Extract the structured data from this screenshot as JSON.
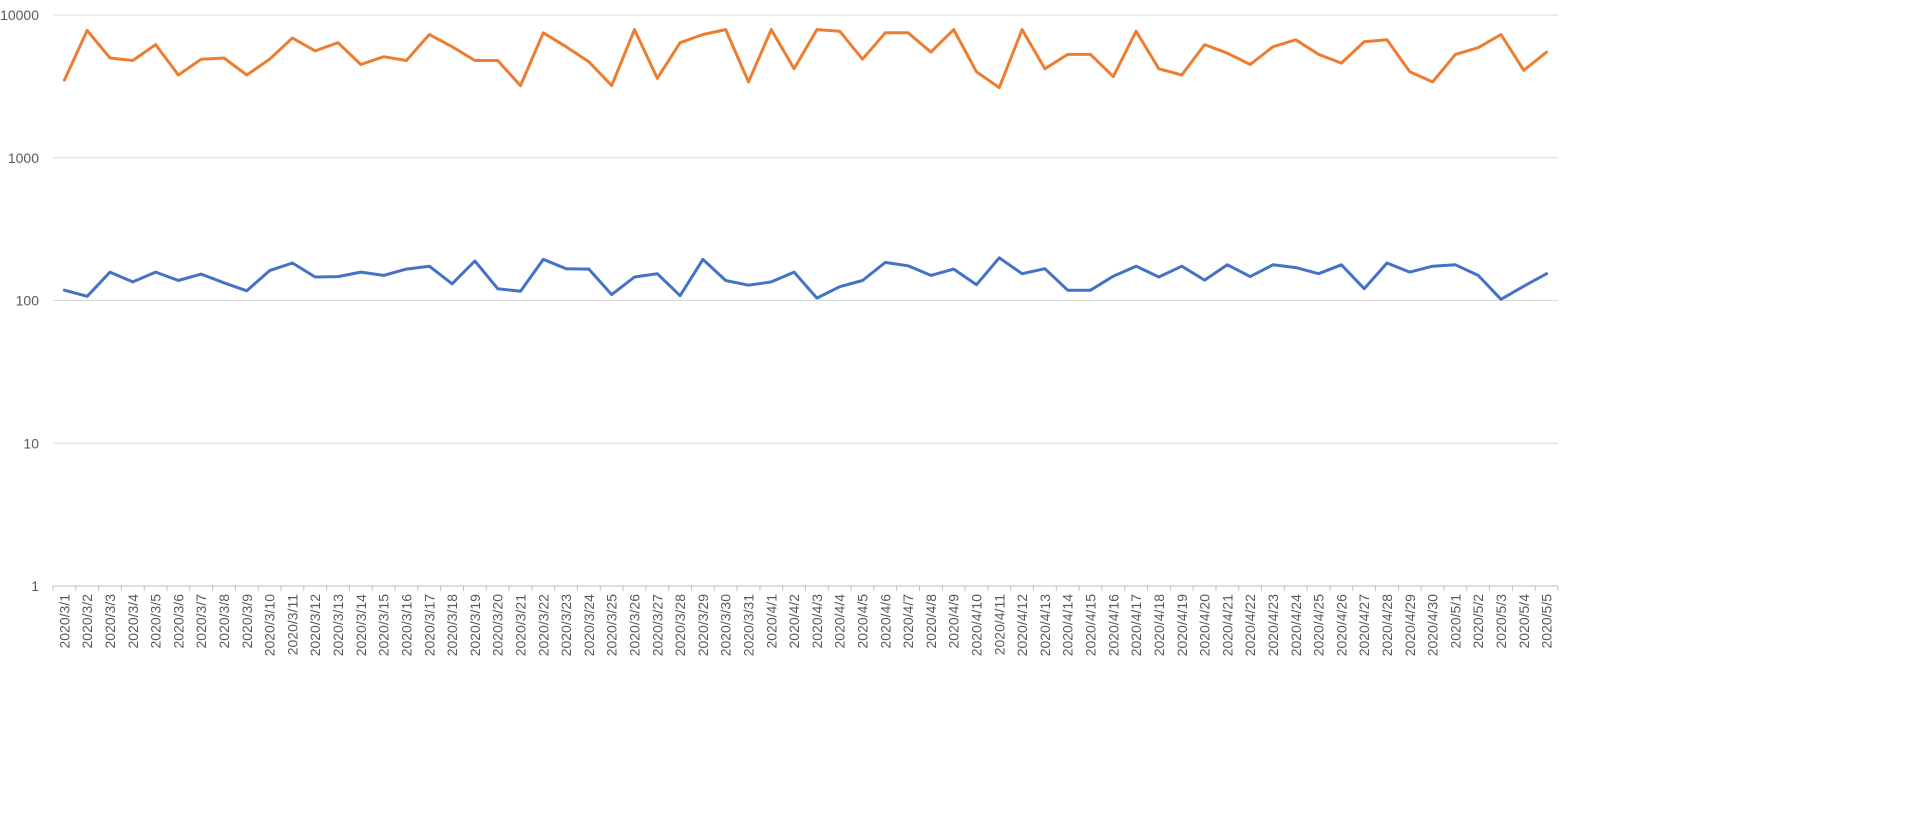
{
  "chart_data": {
    "type": "line",
    "title": "",
    "xlabel": "",
    "ylabel": "",
    "y_scale": "log",
    "ylim": [
      1,
      10000
    ],
    "y_ticks": [
      {
        "value": 1,
        "label": "1"
      },
      {
        "value": 10,
        "label": "10"
      },
      {
        "value": 100,
        "label": "100"
      },
      {
        "value": 1000,
        "label": "1000"
      },
      {
        "value": 10000,
        "label": "10000"
      }
    ],
    "grid": true,
    "legend": "none",
    "categories": [
      "2020/3/1",
      "2020/3/2",
      "2020/3/3",
      "2020/3/4",
      "2020/3/5",
      "2020/3/6",
      "2020/3/7",
      "2020/3/8",
      "2020/3/9",
      "2020/3/10",
      "2020/3/11",
      "2020/3/12",
      "2020/3/13",
      "2020/3/14",
      "2020/3/15",
      "2020/3/16",
      "2020/3/17",
      "2020/3/18",
      "2020/3/19",
      "2020/3/20",
      "2020/3/21",
      "2020/3/22",
      "2020/3/23",
      "2020/3/24",
      "2020/3/25",
      "2020/3/26",
      "2020/3/27",
      "2020/3/28",
      "2020/3/29",
      "2020/3/30",
      "2020/3/31",
      "2020/4/1",
      "2020/4/2",
      "2020/4/3",
      "2020/4/4",
      "2020/4/5",
      "2020/4/6",
      "2020/4/7",
      "2020/4/8",
      "2020/4/9",
      "2020/4/10",
      "2020/4/11",
      "2020/4/12",
      "2020/4/13",
      "2020/4/14",
      "2020/4/15",
      "2020/4/16",
      "2020/4/17",
      "2020/4/18",
      "2020/4/19",
      "2020/4/20",
      "2020/4/21",
      "2020/4/22",
      "2020/4/23",
      "2020/4/24",
      "2020/4/25",
      "2020/4/26",
      "2020/4/27",
      "2020/4/28",
      "2020/4/29",
      "2020/4/30",
      "2020/5/1",
      "2020/5/2",
      "2020/5/3",
      "2020/5/4",
      "2020/5/5"
    ],
    "series": [
      {
        "color": "#ED7D31",
        "values": [
          3500,
          7800,
          5000,
          4800,
          6200,
          3800,
          4900,
          5000,
          3800,
          4900,
          6900,
          5600,
          6400,
          4500,
          5100,
          4800,
          7300,
          6000,
          4800,
          4800,
          3200,
          7500,
          6000,
          4700,
          3200,
          7900,
          3600,
          6400,
          7300,
          7900,
          3400,
          7900,
          4200,
          7900,
          7700,
          4900,
          7500,
          7500,
          5500,
          7900,
          4000,
          3100,
          7900,
          4200,
          5300,
          5300,
          3700,
          7700,
          4200,
          3800,
          6200,
          5400,
          4500,
          6000,
          6700,
          5300,
          4600,
          6500,
          6700,
          4000,
          3400,
          5300,
          5900,
          7300,
          4100,
          5500
        ]
      },
      {
        "color": "#4472C4",
        "values": [
          118,
          107,
          158,
          135,
          158,
          138,
          153,
          133,
          117,
          162,
          183,
          146,
          147,
          158,
          150,
          166,
          174,
          131,
          189,
          121,
          116,
          194,
          167,
          166,
          110,
          146,
          154,
          108,
          194,
          138,
          128,
          135,
          158,
          104,
          125,
          138,
          185,
          175,
          150,
          166,
          129,
          199,
          154,
          167,
          118,
          118,
          148,
          174,
          146,
          174,
          139,
          178,
          147,
          178,
          170,
          154,
          178,
          121,
          183,
          158,
          174,
          178,
          150,
          102,
          126,
          154
        ]
      }
    ]
  }
}
